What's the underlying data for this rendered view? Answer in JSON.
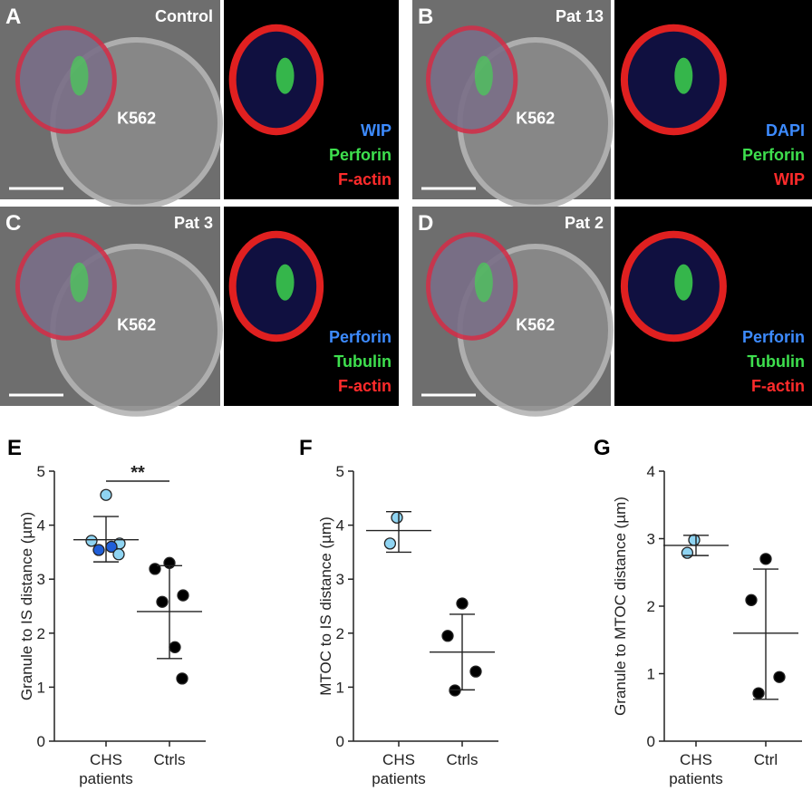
{
  "panels": [
    {
      "letter": "A",
      "sample": "Control",
      "target": "K562",
      "channels": [
        {
          "name": "WIP",
          "color": "#3d8bff"
        },
        {
          "name": "Perforin",
          "color": "#3ee04e"
        },
        {
          "name": "F-actin",
          "color": "#ff2b2b"
        }
      ]
    },
    {
      "letter": "B",
      "sample": "Pat 13",
      "target": "K562",
      "channels": [
        {
          "name": "DAPI",
          "color": "#3d8bff"
        },
        {
          "name": "Perforin",
          "color": "#3ee04e"
        },
        {
          "name": "WIP",
          "color": "#ff2b2b"
        }
      ]
    },
    {
      "letter": "C",
      "sample": "Pat 3",
      "target": "K562",
      "channels": [
        {
          "name": "Perforin",
          "color": "#3d8bff"
        },
        {
          "name": "Tubulin",
          "color": "#3ee04e"
        },
        {
          "name": "F-actin",
          "color": "#ff2b2b"
        }
      ]
    },
    {
      "letter": "D",
      "sample": "Pat 2",
      "target": "K562",
      "channels": [
        {
          "name": "Perforin",
          "color": "#3d8bff"
        },
        {
          "name": "Tubulin",
          "color": "#3ee04e"
        },
        {
          "name": "F-actin",
          "color": "#ff2b2b"
        }
      ]
    }
  ],
  "chart_data": [
    {
      "type": "dot",
      "letter": "E",
      "ylabel": "Granule to IS distance (µm)",
      "categories": [
        "CHS patients",
        "Ctrls"
      ],
      "ylim": [
        0,
        5
      ],
      "yticks": [
        0,
        1,
        2,
        3,
        4,
        5
      ],
      "significance": "**",
      "groups": [
        {
          "values": [
            4.56,
            3.71,
            3.66,
            3.54,
            3.6,
            3.46
          ],
          "colors": [
            "#8fd4f2",
            "#8fd4f2",
            "#8fd4f2",
            "#1f5ed8",
            "#1f5ed8",
            "#8fd4f2"
          ],
          "mean": 3.73,
          "error_high": 4.16,
          "error_low": 3.32
        },
        {
          "values": [
            3.3,
            3.19,
            2.7,
            2.58,
            1.74,
            1.16
          ],
          "colors": [
            "#000000",
            "#000000",
            "#000000",
            "#000000",
            "#000000",
            "#000000"
          ],
          "mean": 2.4,
          "error_high": 3.25,
          "error_low": 1.53
        }
      ]
    },
    {
      "type": "dot",
      "letter": "F",
      "ylabel": "MTOC to IS distance (µm)",
      "categories": [
        "CHS patients",
        "Ctrls"
      ],
      "ylim": [
        0,
        5
      ],
      "yticks": [
        0,
        1,
        2,
        3,
        4,
        5
      ],
      "groups": [
        {
          "values": [
            4.14,
            3.66
          ],
          "colors": [
            "#8fd4f2",
            "#8fd4f2"
          ],
          "mean": 3.9,
          "error_high": 4.25,
          "error_low": 3.5
        },
        {
          "values": [
            2.55,
            1.95,
            1.29,
            0.94
          ],
          "colors": [
            "#000000",
            "#000000",
            "#000000",
            "#000000"
          ],
          "mean": 1.65,
          "error_high": 2.35,
          "error_low": 0.95
        }
      ]
    },
    {
      "type": "dot",
      "letter": "G",
      "ylabel": "Granule to MTOC distance (µm)",
      "categories": [
        "CHS patients",
        "Ctrl"
      ],
      "ylim": [
        0,
        4
      ],
      "yticks": [
        0,
        1,
        2,
        3,
        4
      ],
      "groups": [
        {
          "values": [
            2.98,
            2.79
          ],
          "colors": [
            "#8fd4f2",
            "#8fd4f2"
          ],
          "mean": 2.9,
          "error_high": 3.05,
          "error_low": 2.75
        },
        {
          "values": [
            2.7,
            2.09,
            0.95,
            0.71
          ],
          "colors": [
            "#000000",
            "#000000",
            "#000000",
            "#000000"
          ],
          "mean": 1.6,
          "error_high": 2.55,
          "error_low": 0.62
        }
      ]
    }
  ]
}
